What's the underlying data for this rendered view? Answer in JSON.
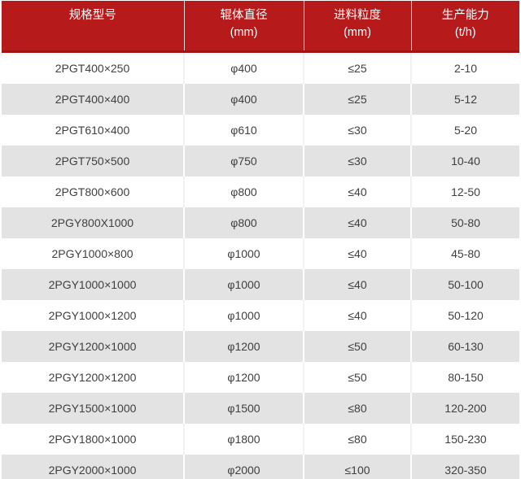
{
  "colors": {
    "header_bg": "#b61a1a",
    "header_bottom_border": "#a01414",
    "header_text": "#ffffff",
    "row_alt_bg": "#e3e3e3",
    "row_bg": "#ffffff",
    "cell_text": "#3f3f3f"
  },
  "table": {
    "headers": [
      {
        "label": "规格型号",
        "unit": ""
      },
      {
        "label": "辊体直径",
        "unit": "(mm)"
      },
      {
        "label": "进料粒度",
        "unit": "(mm)"
      },
      {
        "label": "生产能力",
        "unit": "(t/h)"
      }
    ],
    "rows": [
      {
        "model": "2PGT400×250",
        "roller_diameter": "φ400",
        "feed_size": "≤25",
        "capacity": "2-10"
      },
      {
        "model": "2PGT400×400",
        "roller_diameter": "φ400",
        "feed_size": "≤25",
        "capacity": "5-12"
      },
      {
        "model": "2PGT610×400",
        "roller_diameter": "φ610",
        "feed_size": "≤30",
        "capacity": "5-20"
      },
      {
        "model": "2PGT750×500",
        "roller_diameter": "φ750",
        "feed_size": "≤30",
        "capacity": "10-40"
      },
      {
        "model": "2PGT800×600",
        "roller_diameter": "φ800",
        "feed_size": "≤40",
        "capacity": "12-50"
      },
      {
        "model": "2PGY800X1000",
        "roller_diameter": "φ800",
        "feed_size": "≤40",
        "capacity": "50-80"
      },
      {
        "model": "2PGY1000×800",
        "roller_diameter": "φ1000",
        "feed_size": "≤40",
        "capacity": "45-80"
      },
      {
        "model": "2PGY1000×1000",
        "roller_diameter": "φ1000",
        "feed_size": "≤40",
        "capacity": "50-100"
      },
      {
        "model": "2PGY1000×1200",
        "roller_diameter": "φ1000",
        "feed_size": "≤40",
        "capacity": "50-120"
      },
      {
        "model": "2PGY1200×1000",
        "roller_diameter": "φ1200",
        "feed_size": "≤50",
        "capacity": "60-130"
      },
      {
        "model": "2PGY1200×1200",
        "roller_diameter": "φ1200",
        "feed_size": "≤50",
        "capacity": "80-150"
      },
      {
        "model": "2PGY1500×1000",
        "roller_diameter": "φ1500",
        "feed_size": "≤80",
        "capacity": "120-200"
      },
      {
        "model": "2PGY1800×1000",
        "roller_diameter": "φ1800",
        "feed_size": "≤80",
        "capacity": "150-230"
      },
      {
        "model": "2PGY2000×1000",
        "roller_diameter": "φ2000",
        "feed_size": "≤100",
        "capacity": "320-350"
      }
    ]
  },
  "chart_data": {
    "type": "table",
    "title": "",
    "columns": [
      "规格型号",
      "辊体直径 (mm)",
      "进料粒度 (mm)",
      "生产能力 (t/h)"
    ],
    "rows": [
      [
        "2PGT400×250",
        "φ400",
        "≤25",
        "2-10"
      ],
      [
        "2PGT400×400",
        "φ400",
        "≤25",
        "5-12"
      ],
      [
        "2PGT610×400",
        "φ610",
        "≤30",
        "5-20"
      ],
      [
        "2PGT750×500",
        "φ750",
        "≤30",
        "10-40"
      ],
      [
        "2PGT800×600",
        "φ800",
        "≤40",
        "12-50"
      ],
      [
        "2PGY800X1000",
        "φ800",
        "≤40",
        "50-80"
      ],
      [
        "2PGY1000×800",
        "φ1000",
        "≤40",
        "45-80"
      ],
      [
        "2PGY1000×1000",
        "φ1000",
        "≤40",
        "50-100"
      ],
      [
        "2PGY1000×1200",
        "φ1000",
        "≤40",
        "50-120"
      ],
      [
        "2PGY1200×1000",
        "φ1200",
        "≤50",
        "60-130"
      ],
      [
        "2PGY1200×1200",
        "φ1200",
        "≤50",
        "80-150"
      ],
      [
        "2PGY1500×1000",
        "φ1500",
        "≤80",
        "120-200"
      ],
      [
        "2PGY1800×1000",
        "φ1800",
        "≤80",
        "150-230"
      ],
      [
        "2PGY2000×1000",
        "φ2000",
        "≤100",
        "320-350"
      ]
    ]
  }
}
